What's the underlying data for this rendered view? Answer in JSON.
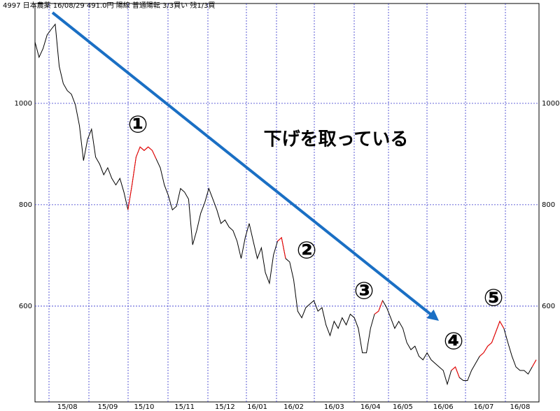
{
  "chart_data": {
    "type": "line",
    "title": "4997 日本農薬 16/08/29 491.0円 陽線 普通陽転 3/3買い 残1/3買",
    "ylim": [
      411,
      1197
    ],
    "yticks": [
      600,
      800,
      1000
    ],
    "grid": true,
    "grid_color": "#3333cc",
    "categories": [
      null,
      null,
      null,
      null,
      null,
      null,
      null,
      null,
      "15/08",
      null,
      null,
      null,
      null,
      null,
      null,
      null,
      null,
      null,
      "15/09",
      null,
      null,
      null,
      null,
      null,
      null,
      null,
      null,
      "15/10",
      null,
      null,
      null,
      null,
      null,
      null,
      null,
      null,
      null,
      "15/11",
      null,
      null,
      null,
      null,
      null,
      null,
      null,
      null,
      null,
      "15/12",
      null,
      null,
      null,
      null,
      null,
      null,
      null,
      "16/01",
      null,
      null,
      null,
      null,
      null,
      null,
      null,
      null,
      "16/02",
      null,
      null,
      null,
      null,
      null,
      null,
      null,
      null,
      null,
      "16/03",
      null,
      null,
      null,
      null,
      null,
      null,
      null,
      null,
      "16/04",
      null,
      null,
      null,
      null,
      null,
      null,
      null,
      "16/05",
      null,
      null,
      null,
      null,
      null,
      null,
      null,
      null,
      null,
      "16/06",
      null,
      null,
      null,
      null,
      null,
      null,
      null,
      null,
      null,
      "16/07",
      null,
      null,
      null,
      null,
      null,
      null,
      null,
      null,
      "16/08",
      null,
      null,
      null,
      null
    ],
    "series": [
      {
        "color": "#000000",
        "values": [
          1121,
          1091,
          1108,
          1135,
          1146,
          1156,
          1073,
          1039,
          1025,
          1018,
          997,
          956,
          887,
          929,
          949,
          894,
          880,
          859,
          873,
          852,
          839,
          852,
          825,
          790,
          839,
          894,
          914,
          907,
          914,
          907,
          890,
          873,
          839,
          818,
          790,
          797,
          832,
          825,
          811,
          721,
          749,
          783,
          804,
          832,
          811,
          790,
          763,
          770,
          756,
          749,
          728,
          694,
          735,
          763,
          728,
          694,
          715,
          666,
          645,
          701,
          728,
          735,
          694,
          687,
          652,
          590,
          577,
          597,
          604,
          611,
          590,
          597,
          563,
          542,
          570,
          556,
          577,
          563,
          584,
          577,
          556,
          508,
          508,
          556,
          584,
          590,
          611,
          597,
          577,
          556,
          570,
          556,
          528,
          514,
          521,
          501,
          494,
          508,
          494,
          487,
          480,
          473,
          446,
          473,
          480,
          459,
          453,
          453,
          473,
          487,
          501,
          508,
          521,
          528,
          549,
          570,
          556,
          528,
          501,
          480,
          473,
          473,
          466,
          480,
          494
        ]
      },
      {
        "color": "#ff0000",
        "values": [
          null,
          null,
          null,
          null,
          null,
          null,
          null,
          null,
          null,
          null,
          null,
          null,
          null,
          null,
          null,
          null,
          null,
          null,
          null,
          null,
          null,
          null,
          null,
          790,
          839,
          894,
          914,
          907,
          914,
          907,
          890,
          null,
          null,
          null,
          null,
          null,
          null,
          null,
          null,
          null,
          null,
          null,
          null,
          null,
          null,
          null,
          null,
          null,
          null,
          null,
          null,
          null,
          null,
          null,
          null,
          null,
          null,
          null,
          null,
          null,
          728,
          735,
          694,
          null,
          null,
          null,
          null,
          null,
          null,
          null,
          null,
          null,
          null,
          null,
          null,
          null,
          null,
          null,
          null,
          null,
          null,
          null,
          null,
          null,
          584,
          590,
          611,
          null,
          null,
          null,
          null,
          null,
          null,
          null,
          null,
          null,
          null,
          null,
          null,
          null,
          null,
          null,
          null,
          473,
          480,
          459,
          null,
          null,
          null,
          null,
          501,
          508,
          521,
          528,
          549,
          570,
          556,
          null,
          null,
          null,
          null,
          null,
          null,
          480,
          494
        ]
      }
    ],
    "annotations": [
      "①",
      "②",
      "③",
      "④",
      "⑤",
      "下げを取っている"
    ],
    "annotation_colors": [
      "#ff0000",
      "#ff0000",
      "#ff0000",
      "#ff0000",
      "#ff0000",
      "#1a6fc4"
    ]
  }
}
